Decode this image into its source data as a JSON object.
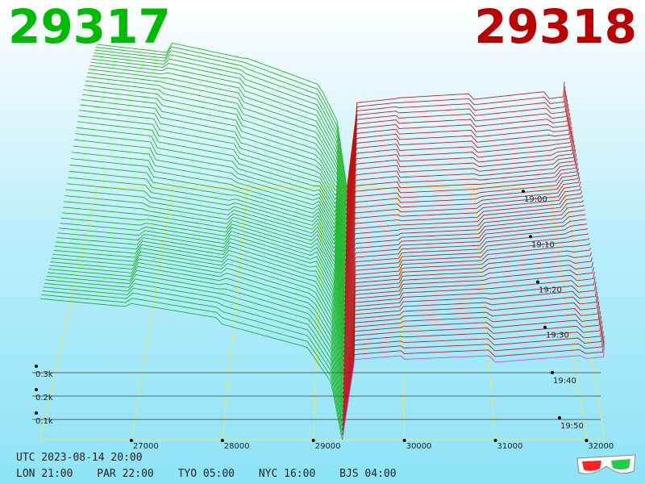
{
  "header": {
    "bid_price": "29317",
    "ask_price": "29318",
    "bid_color": "#00bb00",
    "ask_color": "#bb0000"
  },
  "footer": {
    "utc_label": "UTC 2023-08-14 20:00",
    "zones": [
      {
        "label": "LON 21:00"
      },
      {
        "label": "PAR 22:00"
      },
      {
        "label": "TYO 05:00"
      },
      {
        "label": "NYC 16:00"
      },
      {
        "label": "BJS 04:00"
      }
    ],
    "glasses_icon": "3d-glasses-icon"
  },
  "chart_data": {
    "type": "area",
    "chart_kind": "3D order-book depth history",
    "x_axis": {
      "ticks": [
        27000,
        28000,
        29000,
        30000,
        31000,
        32000
      ],
      "range": [
        26000,
        32200
      ]
    },
    "y_axis": {
      "ticks": [
        "0.1k",
        "0.2k",
        "0.3k"
      ],
      "range": [
        0,
        400
      ]
    },
    "time_axis": {
      "ticks": [
        "19:00",
        "19:10",
        "19:20",
        "19:30",
        "19:40",
        "19:50"
      ]
    },
    "mid_price": 29317.5,
    "bid_side": {
      "color": "#00aa00",
      "price_points": [
        26000,
        27000,
        28000,
        29000,
        29200,
        29317
      ],
      "cumulative_depth": [
        335,
        315,
        280,
        220,
        150,
        0
      ]
    },
    "ask_side": {
      "color": "#bb0000",
      "price_points": [
        29318,
        29450,
        30000,
        31000,
        32000,
        32200
      ],
      "cumulative_depth": [
        0,
        195,
        205,
        215,
        235,
        240
      ]
    },
    "latest_snapshot_color": "#cc33ee",
    "grid": true
  }
}
